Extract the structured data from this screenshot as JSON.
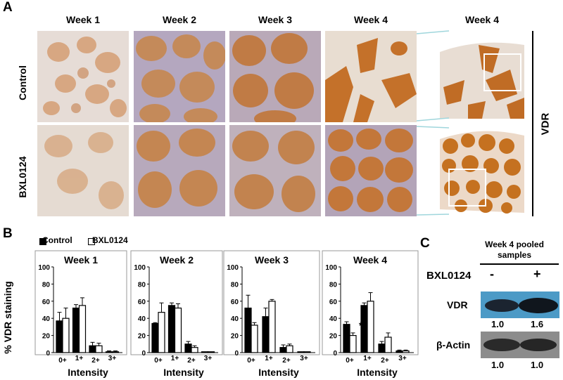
{
  "panels": {
    "a": "A",
    "b": "B",
    "c": "C"
  },
  "panel_a": {
    "columns": [
      "Week 1",
      "Week 2",
      "Week 3",
      "Week 4",
      "Week 4"
    ],
    "rows": [
      "Control",
      "BXL0124"
    ],
    "marker": "VDR"
  },
  "panel_b": {
    "legend": [
      "Control",
      "BXL0124"
    ],
    "ylabel": "% VDR staining",
    "xlabel": "Intensity",
    "ticks_x": [
      "0+",
      "1+",
      "2+",
      "3+"
    ],
    "ticks_y": [
      "0",
      "20",
      "40",
      "60",
      "80",
      "100"
    ],
    "asterisk": "*"
  },
  "chart_data": [
    {
      "type": "bar",
      "title": "Week 1",
      "categories": [
        "0+",
        "1+",
        "2+",
        "3+"
      ],
      "ylim": [
        0,
        100
      ],
      "xlabel": "Intensity",
      "ylabel": "% VDR staining",
      "series": [
        {
          "name": "Control",
          "values": [
            37,
            52,
            8,
            1
          ],
          "errors": [
            10,
            4,
            4,
            1
          ]
        },
        {
          "name": "BXL0124",
          "values": [
            40,
            55,
            8,
            1
          ],
          "errors": [
            12,
            9,
            3,
            1
          ]
        }
      ]
    },
    {
      "type": "bar",
      "title": "Week 2",
      "categories": [
        "0+",
        "1+",
        "2+",
        "3+"
      ],
      "ylim": [
        0,
        100
      ],
      "xlabel": "Intensity",
      "ylabel": "% VDR staining",
      "series": [
        {
          "name": "Control",
          "values": [
            34,
            55,
            10,
            1
          ],
          "errors": [
            1,
            3,
            3,
            0
          ]
        },
        {
          "name": "BXL0124",
          "values": [
            47,
            52,
            6,
            1
          ],
          "errors": [
            11,
            5,
            2,
            0
          ]
        }
      ]
    },
    {
      "type": "bar",
      "title": "Week 3",
      "categories": [
        "0+",
        "1+",
        "2+",
        "3+"
      ],
      "ylim": [
        0,
        100
      ],
      "xlabel": "Intensity",
      "ylabel": "% VDR staining",
      "series": [
        {
          "name": "Control",
          "values": [
            52,
            42,
            6,
            1
          ],
          "errors": [
            15,
            10,
            3,
            0
          ]
        },
        {
          "name": "BXL0124",
          "values": [
            32,
            60,
            8,
            1
          ],
          "errors": [
            3,
            2,
            2,
            0
          ]
        }
      ]
    },
    {
      "type": "bar",
      "title": "Week 4",
      "categories": [
        "0+",
        "1+",
        "2+",
        "3+"
      ],
      "ylim": [
        0,
        100
      ],
      "xlabel": "Intensity",
      "ylabel": "% VDR staining",
      "series": [
        {
          "name": "Control",
          "values": [
            33,
            55,
            10,
            2
          ],
          "errors": [
            3,
            3,
            3,
            1
          ]
        },
        {
          "name": "BXL0124",
          "values": [
            20,
            60,
            18,
            2
          ],
          "errors": [
            3,
            10,
            5,
            1
          ]
        }
      ]
    }
  ],
  "panel_c": {
    "title_line1": "Week 4 pooled",
    "title_line2": "samples",
    "treatment_label": "BXL0124",
    "lanes": [
      "-",
      "+"
    ],
    "bands": [
      {
        "label": "VDR",
        "values": [
          "1.0",
          "1.6"
        ]
      },
      {
        "label": "β-Actin",
        "values": [
          "1.0",
          "1.0"
        ]
      }
    ]
  },
  "colors": {
    "stain": "#c2732e",
    "stain_light": "#d9a36f",
    "tissue_bg": "#ead9cb",
    "hematoxylin": "#7d87b8",
    "wb_vdr_bg": "#4c9ac6",
    "wb_actin_bg": "#8c8c8c",
    "callout_line": "#9fd6dc"
  }
}
